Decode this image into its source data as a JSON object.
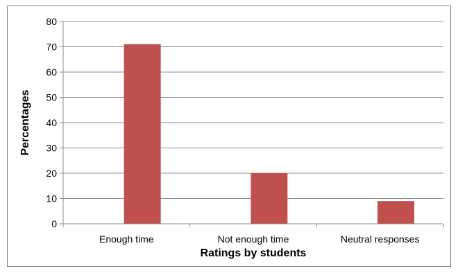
{
  "chart_data": {
    "type": "bar",
    "categories": [
      "Enough time",
      "Not enough time",
      "Neutral responses"
    ],
    "series": [
      {
        "values": [
          71,
          20,
          9
        ],
        "color": "#c0504d"
      }
    ],
    "xlabel": "Ratings by students",
    "ylabel": "Percentages",
    "ylim": [
      0,
      80
    ],
    "yticks": [
      0,
      10,
      20,
      30,
      40,
      50,
      60,
      70,
      80
    ],
    "grid": true,
    "legend": "none"
  }
}
